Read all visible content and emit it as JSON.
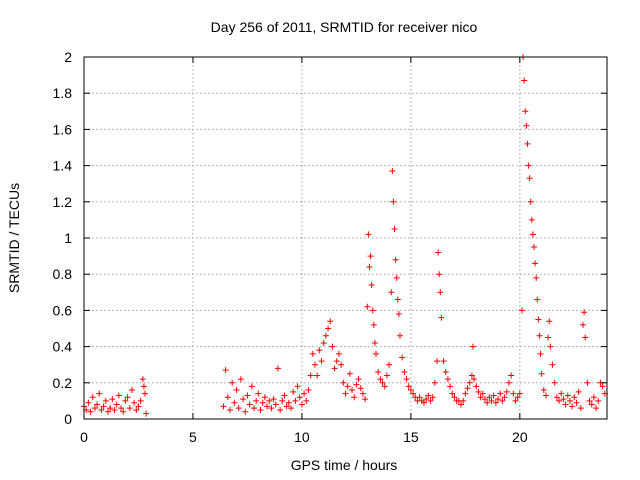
{
  "chart_data": {
    "type": "scatter",
    "title": "Day 256 of 2011, SRMTID for receiver nico",
    "xlabel": "GPS time / hours",
    "ylabel": "SRMTID / TECUs",
    "xlim": [
      0,
      24
    ],
    "ylim": [
      0,
      2
    ],
    "xticks": [
      0,
      5,
      10,
      15,
      20
    ],
    "yticks": [
      0,
      0.2,
      0.4,
      0.6,
      0.8,
      1,
      1.2,
      1.4,
      1.6,
      1.8,
      2
    ],
    "xtick_labels": [
      "0",
      "5",
      "10",
      "15",
      "20"
    ],
    "ytick_labels": [
      "0",
      "0.2",
      "0.4",
      "0.6",
      "0.8",
      "1",
      "1.2",
      "1.4",
      "1.6",
      "1.8",
      "2"
    ],
    "grid": true,
    "marker": "plus",
    "colors": {
      "series": "#ff0000",
      "grid": "#a0a0a0",
      "axis": "#000000"
    },
    "series": [
      {
        "name": "SRMTID",
        "points": [
          [
            0.0,
            0.07
          ],
          [
            0.1,
            0.05
          ],
          [
            0.2,
            0.09
          ],
          [
            0.3,
            0.04
          ],
          [
            0.4,
            0.12
          ],
          [
            0.5,
            0.06
          ],
          [
            0.6,
            0.08
          ],
          [
            0.7,
            0.14
          ],
          [
            0.8,
            0.05
          ],
          [
            0.9,
            0.07
          ],
          [
            1.0,
            0.1
          ],
          [
            1.1,
            0.04
          ],
          [
            1.2,
            0.06
          ],
          [
            1.3,
            0.11
          ],
          [
            1.4,
            0.05
          ],
          [
            1.5,
            0.08
          ],
          [
            1.6,
            0.13
          ],
          [
            1.7,
            0.06
          ],
          [
            1.8,
            0.04
          ],
          [
            1.9,
            0.1
          ],
          [
            2.0,
            0.12
          ],
          [
            2.1,
            0.06
          ],
          [
            2.2,
            0.16
          ],
          [
            2.3,
            0.09
          ],
          [
            2.4,
            0.05
          ],
          [
            2.5,
            0.07
          ],
          [
            2.6,
            0.1
          ],
          [
            2.7,
            0.22
          ],
          [
            2.75,
            0.18
          ],
          [
            2.8,
            0.14
          ],
          [
            2.85,
            0.03
          ],
          [
            6.4,
            0.07
          ],
          [
            6.5,
            0.27
          ],
          [
            6.6,
            0.12
          ],
          [
            6.7,
            0.05
          ],
          [
            6.8,
            0.2
          ],
          [
            6.9,
            0.09
          ],
          [
            7.0,
            0.16
          ],
          [
            7.1,
            0.06
          ],
          [
            7.2,
            0.22
          ],
          [
            7.3,
            0.11
          ],
          [
            7.4,
            0.04
          ],
          [
            7.5,
            0.13
          ],
          [
            7.6,
            0.08
          ],
          [
            7.7,
            0.18
          ],
          [
            7.8,
            0.06
          ],
          [
            7.9,
            0.1
          ],
          [
            8.0,
            0.14
          ],
          [
            8.1,
            0.05
          ],
          [
            8.2,
            0.09
          ],
          [
            8.3,
            0.12
          ],
          [
            8.4,
            0.07
          ],
          [
            8.5,
            0.1
          ],
          [
            8.6,
            0.06
          ],
          [
            8.7,
            0.11
          ],
          [
            8.8,
            0.08
          ],
          [
            8.9,
            0.28
          ],
          [
            9.0,
            0.05
          ],
          [
            9.1,
            0.1
          ],
          [
            9.2,
            0.13
          ],
          [
            9.3,
            0.07
          ],
          [
            9.4,
            0.09
          ],
          [
            9.5,
            0.06
          ],
          [
            9.6,
            0.15
          ],
          [
            9.7,
            0.1
          ],
          [
            9.8,
            0.18
          ],
          [
            9.9,
            0.12
          ],
          [
            10.0,
            0.08
          ],
          [
            10.1,
            0.14
          ],
          [
            10.2,
            0.1
          ],
          [
            10.3,
            0.16
          ],
          [
            10.4,
            0.24
          ],
          [
            10.5,
            0.36
          ],
          [
            10.6,
            0.3
          ],
          [
            10.7,
            0.24
          ],
          [
            10.8,
            0.38
          ],
          [
            10.9,
            0.32
          ],
          [
            11.0,
            0.42
          ],
          [
            11.1,
            0.46
          ],
          [
            11.2,
            0.5
          ],
          [
            11.3,
            0.54
          ],
          [
            11.4,
            0.4
          ],
          [
            11.5,
            0.28
          ],
          [
            11.6,
            0.32
          ],
          [
            11.7,
            0.36
          ],
          [
            11.8,
            0.3
          ],
          [
            11.9,
            0.2
          ],
          [
            12.0,
            0.14
          ],
          [
            12.1,
            0.18
          ],
          [
            12.2,
            0.25
          ],
          [
            12.3,
            0.16
          ],
          [
            12.4,
            0.12
          ],
          [
            12.5,
            0.19
          ],
          [
            12.6,
            0.22
          ],
          [
            12.7,
            0.17
          ],
          [
            12.8,
            0.14
          ],
          [
            12.9,
            0.11
          ],
          [
            13.0,
            0.62
          ],
          [
            13.05,
            1.02
          ],
          [
            13.1,
            0.84
          ],
          [
            13.15,
            0.9
          ],
          [
            13.2,
            0.74
          ],
          [
            13.25,
            0.6
          ],
          [
            13.3,
            0.52
          ],
          [
            13.35,
            0.42
          ],
          [
            13.4,
            0.36
          ],
          [
            13.5,
            0.26
          ],
          [
            13.6,
            0.22
          ],
          [
            13.7,
            0.2
          ],
          [
            13.8,
            0.18
          ],
          [
            13.9,
            0.24
          ],
          [
            14.0,
            0.3
          ],
          [
            14.1,
            0.7
          ],
          [
            14.15,
            1.37
          ],
          [
            14.2,
            1.2
          ],
          [
            14.25,
            1.05
          ],
          [
            14.3,
            0.88
          ],
          [
            14.35,
            0.78
          ],
          [
            14.4,
            0.66
          ],
          [
            14.45,
            0.58
          ],
          [
            14.5,
            0.46
          ],
          [
            14.6,
            0.34
          ],
          [
            14.7,
            0.26
          ],
          [
            14.8,
            0.22
          ],
          [
            14.9,
            0.18
          ],
          [
            15.0,
            0.16
          ],
          [
            15.1,
            0.14
          ],
          [
            15.2,
            0.12
          ],
          [
            15.3,
            0.1
          ],
          [
            15.4,
            0.12
          ],
          [
            15.5,
            0.1
          ],
          [
            15.6,
            0.09
          ],
          [
            15.7,
            0.11
          ],
          [
            15.8,
            0.13
          ],
          [
            15.9,
            0.1
          ],
          [
            16.0,
            0.12
          ],
          [
            16.1,
            0.2
          ],
          [
            16.2,
            0.32
          ],
          [
            16.25,
            0.92
          ],
          [
            16.3,
            0.8
          ],
          [
            16.35,
            0.7
          ],
          [
            16.4,
            0.56
          ],
          [
            16.5,
            0.32
          ],
          [
            16.6,
            0.26
          ],
          [
            16.7,
            0.22
          ],
          [
            16.8,
            0.18
          ],
          [
            16.9,
            0.14
          ],
          [
            17.0,
            0.12
          ],
          [
            17.1,
            0.1
          ],
          [
            17.2,
            0.1
          ],
          [
            17.3,
            0.08
          ],
          [
            17.4,
            0.1
          ],
          [
            17.5,
            0.14
          ],
          [
            17.6,
            0.17
          ],
          [
            17.7,
            0.2
          ],
          [
            17.8,
            0.24
          ],
          [
            17.85,
            0.4
          ],
          [
            17.9,
            0.22
          ],
          [
            18.0,
            0.18
          ],
          [
            18.1,
            0.15
          ],
          [
            18.2,
            0.12
          ],
          [
            18.3,
            0.14
          ],
          [
            18.4,
            0.11
          ],
          [
            18.5,
            0.09
          ],
          [
            18.6,
            0.12
          ],
          [
            18.7,
            0.1
          ],
          [
            18.8,
            0.13
          ],
          [
            18.9,
            0.09
          ],
          [
            19.0,
            0.11
          ],
          [
            19.1,
            0.14
          ],
          [
            19.2,
            0.1
          ],
          [
            19.3,
            0.12
          ],
          [
            19.4,
            0.15
          ],
          [
            19.5,
            0.2
          ],
          [
            19.6,
            0.24
          ],
          [
            19.7,
            0.14
          ],
          [
            19.8,
            0.1
          ],
          [
            19.9,
            0.12
          ],
          [
            20.0,
            0.14
          ],
          [
            20.1,
            0.6
          ],
          [
            20.15,
            2.0
          ],
          [
            20.2,
            1.87
          ],
          [
            20.25,
            1.7
          ],
          [
            20.3,
            1.62
          ],
          [
            20.35,
            1.52
          ],
          [
            20.4,
            1.4
          ],
          [
            20.45,
            1.33
          ],
          [
            20.5,
            1.2
          ],
          [
            20.55,
            1.1
          ],
          [
            20.6,
            1.02
          ],
          [
            20.65,
            0.95
          ],
          [
            20.7,
            0.86
          ],
          [
            20.75,
            0.78
          ],
          [
            20.8,
            0.66
          ],
          [
            20.85,
            0.55
          ],
          [
            20.9,
            0.46
          ],
          [
            20.95,
            0.36
          ],
          [
            21.0,
            0.25
          ],
          [
            21.1,
            0.16
          ],
          [
            21.2,
            0.13
          ],
          [
            21.3,
            0.45
          ],
          [
            21.35,
            0.54
          ],
          [
            21.4,
            0.4
          ],
          [
            21.5,
            0.3
          ],
          [
            21.6,
            0.2
          ],
          [
            21.7,
            0.12
          ],
          [
            21.8,
            0.1
          ],
          [
            21.9,
            0.14
          ],
          [
            22.0,
            0.11
          ],
          [
            22.1,
            0.08
          ],
          [
            22.2,
            0.13
          ],
          [
            22.3,
            0.1
          ],
          [
            22.4,
            0.07
          ],
          [
            22.5,
            0.12
          ],
          [
            22.6,
            0.09
          ],
          [
            22.7,
            0.15
          ],
          [
            22.8,
            0.06
          ],
          [
            22.9,
            0.52
          ],
          [
            22.95,
            0.59
          ],
          [
            23.0,
            0.45
          ],
          [
            23.1,
            0.2
          ],
          [
            23.2,
            0.1
          ],
          [
            23.3,
            0.08
          ],
          [
            23.4,
            0.12
          ],
          [
            23.5,
            0.06
          ],
          [
            23.6,
            0.1
          ],
          [
            23.7,
            0.2
          ],
          [
            23.8,
            0.18
          ],
          [
            23.9,
            0.14
          ]
        ]
      }
    ]
  }
}
